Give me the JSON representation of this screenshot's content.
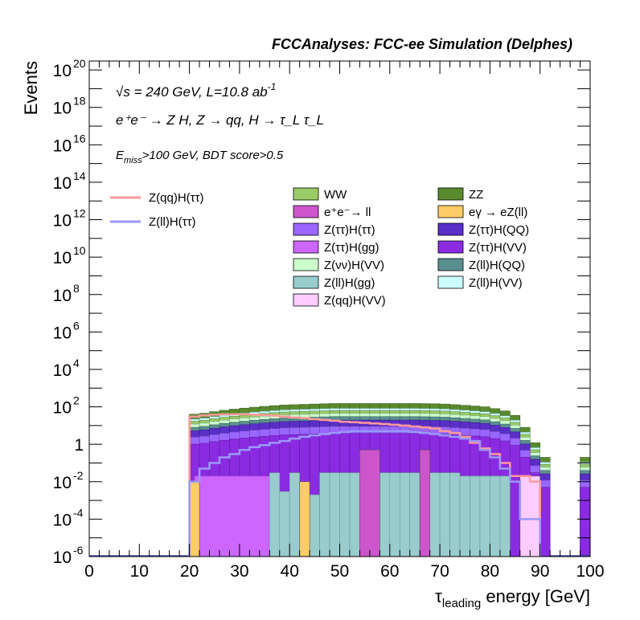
{
  "title": "FCCAnalyses: FCC-ee Simulation (Delphes)",
  "annotations": {
    "line1_sqrt": "√s",
    "line1_rest": " = 240 GeV, L=10.8 ab",
    "line1_sup": "-1",
    "line2": "e⁺e⁻ → Z H, Z → qq, H → τ_L τ_L",
    "line3_e": "E",
    "line3_sub": "miss",
    "line3_rest": ">100 GeV, BDT score>0.5"
  },
  "chart_data": {
    "type": "bar",
    "stacked": true,
    "log_y": true,
    "xlabel_main": "τ",
    "xlabel_sub": "leading",
    "xlabel_rest": " energy [GeV]",
    "ylabel": "Events",
    "xlim": [
      0,
      100
    ],
    "ylim": [
      1e-06,
      3e+20
    ],
    "xticks": [
      "0",
      "10",
      "20",
      "30",
      "40",
      "50",
      "60",
      "70",
      "80",
      "90",
      "100"
    ],
    "yticks": [
      {
        "base": "10",
        "exp": "-6",
        "value": 1e-06
      },
      {
        "base": "10",
        "exp": "-4",
        "value": 0.0001
      },
      {
        "base": "10",
        "exp": "-2",
        "value": 0.01
      },
      {
        "base": "1",
        "exp": "",
        "value": 1
      },
      {
        "base": "10",
        "exp": "2",
        "value": 100.0
      },
      {
        "base": "10",
        "exp": "4",
        "value": 10000.0
      },
      {
        "base": "10",
        "exp": "6",
        "value": 1000000.0
      },
      {
        "base": "10",
        "exp": "8",
        "value": 100000000.0
      },
      {
        "base": "10",
        "exp": "10",
        "value": 10000000000.0
      },
      {
        "base": "10",
        "exp": "12",
        "value": 1000000000000.0
      },
      {
        "base": "10",
        "exp": "14",
        "value": 100000000000000.0
      },
      {
        "base": "10",
        "exp": "16",
        "value": 1e+16
      },
      {
        "base": "10",
        "exp": "18",
        "value": 1e+18
      },
      {
        "base": "10",
        "exp": "20",
        "value": 1e+20
      }
    ],
    "bin_edges": [
      0,
      2,
      4,
      6,
      8,
      10,
      12,
      14,
      16,
      18,
      20,
      22,
      24,
      26,
      28,
      30,
      32,
      34,
      36,
      38,
      40,
      42,
      44,
      46,
      48,
      50,
      52,
      54,
      56,
      58,
      60,
      62,
      64,
      66,
      68,
      70,
      72,
      74,
      76,
      78,
      80,
      82,
      84,
      86,
      88,
      90,
      92,
      94,
      96,
      98,
      100
    ],
    "stack_totals": [
      0,
      0,
      0,
      0,
      0,
      0,
      0,
      0,
      0,
      0,
      40,
      45,
      55,
      65,
      75,
      85,
      95,
      105,
      115,
      125,
      130,
      135,
      140,
      145,
      150,
      150,
      150,
      150,
      150,
      150,
      150,
      150,
      150,
      148,
      145,
      140,
      130,
      120,
      110,
      100,
      80,
      60,
      35,
      8,
      1.2,
      0.2,
      0,
      0,
      0,
      0.2
    ],
    "stack_bands": [
      {
        "name": "ZZ",
        "color": "#5a8a2e",
        "edge": "#3b5e1c"
      },
      {
        "name": "Z(ll)H(VV)",
        "color": "#ccffff",
        "edge": "#6fa0a0"
      },
      {
        "name": "Z(qq)H(VV) + WW",
        "color": "#99cc66",
        "edge": "#5d7d3d"
      },
      {
        "name": "Z(νν)H(VV)",
        "color": "#ccffcc",
        "edge": "#7aa07a"
      },
      {
        "name": "Z(ll)H(QQ)",
        "color": "#5b8f8f",
        "edge": "#3d6161"
      },
      {
        "name": "Z(ττ)H(QQ)",
        "color": "#5a2fc8",
        "edge": "#3a1e85"
      },
      {
        "name": "Z(ττ)H(ττ)",
        "color": "#9966ff",
        "edge": "#6644aa"
      },
      {
        "name": "Z(ττ)H(VV)",
        "color": "#8a2be2",
        "edge": "#5e1d9a"
      }
    ],
    "band_fractions": [
      1.0,
      0.55,
      0.42,
      0.3,
      0.2,
      0.13,
      0.06,
      0.025
    ],
    "purple_fill": {
      "name": "Z(ττ)H(gg)",
      "color": "#cc66ff",
      "x_range": [
        21,
        36
      ],
      "value": 0.02
    },
    "teal_fill": {
      "name": "Z(ll)H(gg)",
      "color": "#99cccc",
      "x_range": [
        36,
        84
      ],
      "values": [
        0.03,
        0.003,
        0.03,
        0.002,
        0.002,
        0.03,
        0.03,
        0.03,
        0.03,
        0.03,
        0.03,
        0.03,
        0.03,
        0.03,
        0.03,
        0.03,
        0.03,
        0.03,
        0.03,
        0.02,
        0.02,
        0.02,
        0.02,
        0.02
      ]
    },
    "spikes": [
      {
        "name": "e⁺e⁻→ ll",
        "color": "#cc55cc",
        "x_range": [
          54,
          58
        ],
        "value": 0.5
      },
      {
        "name": "e⁺e⁻→ ll",
        "color": "#cc55cc",
        "x_range": [
          66,
          68
        ],
        "value": 0.5
      },
      {
        "name": "eγ → eZ(ll)",
        "color": "#ffcc66",
        "x_range": [
          20,
          22
        ],
        "value": 0.01
      },
      {
        "name": "eγ → eZ(ll)",
        "color": "#ffcc66",
        "x_range": [
          42,
          44
        ],
        "value": 0.01
      },
      {
        "name": "Z(qq)H(VV)",
        "color": "#ffccff",
        "x_range": [
          86,
          90
        ],
        "value": 0.02
      }
    ],
    "line_series": [
      {
        "name": "Z(qq)H(ττ)",
        "color": "#ff9999",
        "x": [
          20,
          22,
          24,
          26,
          28,
          30,
          32,
          34,
          36,
          38,
          40,
          42,
          44,
          46,
          48,
          50,
          52,
          54,
          56,
          58,
          60,
          62,
          64,
          66,
          68,
          70,
          72,
          74,
          76,
          78,
          80,
          82,
          84,
          86,
          88
        ],
        "values": [
          30,
          35,
          38,
          40,
          40,
          40,
          38,
          36,
          34,
          30,
          27,
          25,
          22,
          20,
          18,
          16,
          15,
          14,
          13,
          12,
          11,
          10,
          9,
          8,
          7,
          5,
          4,
          2.5,
          1.2,
          0.6,
          0.3,
          0.1,
          0.02,
          0.02,
          0.01
        ]
      },
      {
        "name": "Z(ll)H(ττ)",
        "color": "#9999ff",
        "x": [
          20,
          22,
          24,
          26,
          28,
          30,
          32,
          34,
          36,
          38,
          40,
          42,
          44,
          46,
          48,
          50,
          52,
          54,
          56,
          58,
          60,
          62,
          64,
          66,
          68,
          70,
          72,
          74,
          76,
          78,
          80,
          82,
          84,
          86,
          88
        ],
        "values": [
          0.01,
          0.05,
          0.1,
          0.2,
          0.3,
          0.5,
          0.7,
          0.9,
          1.2,
          1.5,
          2,
          2.5,
          3,
          3.5,
          4,
          4.5,
          5,
          5,
          5,
          5,
          5,
          5,
          4.5,
          4,
          3.5,
          3,
          2.5,
          2,
          1.5,
          0.5,
          0.2,
          0.05,
          0.01,
          0.0001,
          0.0001
        ]
      }
    ],
    "legend_lines": [
      {
        "name": "Z(qq)H(ττ)",
        "color": "#ff9999"
      },
      {
        "name": "Z(ll)H(ττ)",
        "color": "#9999ff"
      }
    ],
    "legend_boxes": [
      {
        "name": "WW",
        "color": "#99cc66"
      },
      {
        "name": "ZZ",
        "color": "#5a8a2e"
      },
      {
        "name": "e⁺e⁻→ ll",
        "color": "#cc55cc"
      },
      {
        "name": "eγ → eZ(ll)",
        "color": "#ffcc66"
      },
      {
        "name": "Z(ττ)H(ττ)",
        "color": "#9966ff"
      },
      {
        "name": "Z(ττ)H(QQ)",
        "color": "#5a2fc8"
      },
      {
        "name": "Z(ττ)H(gg)",
        "color": "#cc66ff"
      },
      {
        "name": "Z(ττ)H(VV)",
        "color": "#8a2be2"
      },
      {
        "name": "Z(νν)H(VV)",
        "color": "#ccffcc"
      },
      {
        "name": "Z(ll)H(QQ)",
        "color": "#5b8f8f"
      },
      {
        "name": "Z(ll)H(gg)",
        "color": "#99cccc"
      },
      {
        "name": "Z(ll)H(VV)",
        "color": "#ccffff"
      },
      {
        "name": "Z(qq)H(VV)",
        "color": "#ffccff"
      }
    ]
  }
}
